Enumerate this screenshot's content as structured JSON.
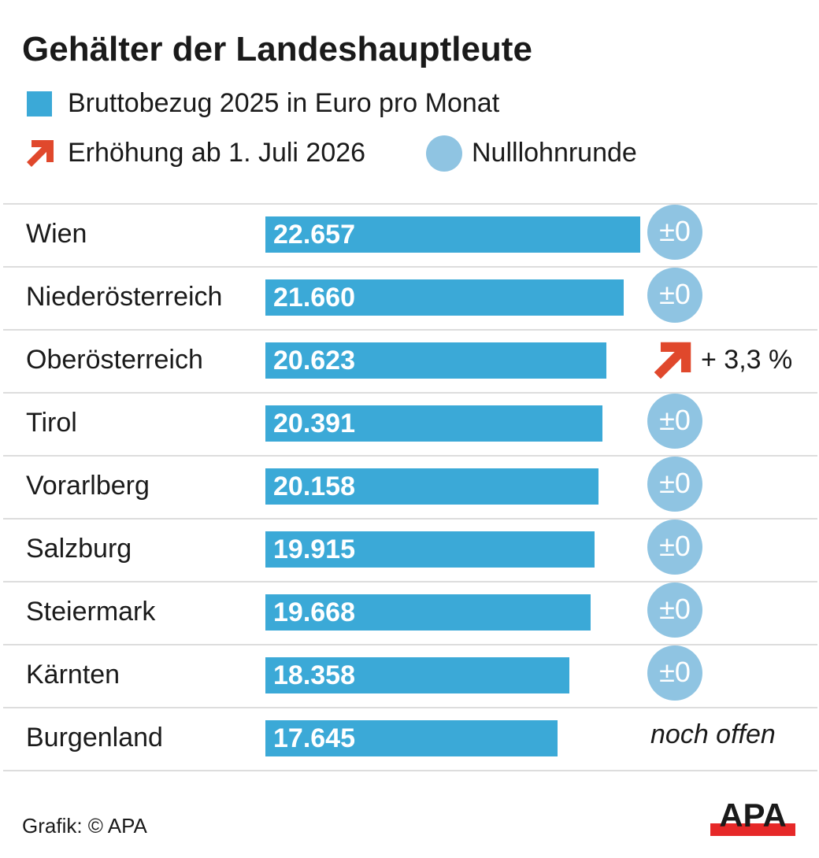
{
  "chart_data": {
    "type": "bar",
    "orientation": "horizontal",
    "title": "Gehälter der Landeshauptleute",
    "legend": [
      {
        "label": "Bruttobezug 2025 in Euro pro Monat",
        "color": "#3ba9d7",
        "shape": "square"
      },
      {
        "label": "Erhöhung ab 1. Juli 2026",
        "color": "#e0482c",
        "shape": "arrow"
      },
      {
        "label": "Nulllohnrunde",
        "color": "#8fc4e2",
        "shape": "circle"
      }
    ],
    "legend_placement": "top-left",
    "grid": false,
    "xlim": [
      0,
      22657
    ],
    "categories": [
      "Wien",
      "Niederösterreich",
      "Oberösterreich",
      "Tirol",
      "Vorarlberg",
      "Salzburg",
      "Steiermark",
      "Kärnten",
      "Burgenland"
    ],
    "values": [
      22657,
      21660,
      20623,
      20391,
      20158,
      19915,
      19668,
      18358,
      17645
    ],
    "value_labels": [
      "22.657",
      "21.660",
      "20.623",
      "20.391",
      "20.158",
      "19.915",
      "19.668",
      "18.358",
      "17.645"
    ],
    "change_type": [
      "zero",
      "zero",
      "increase",
      "zero",
      "zero",
      "zero",
      "zero",
      "zero",
      "open"
    ],
    "change_labels": [
      "±0",
      "±0",
      "+ 3,3 %",
      "±0",
      "±0",
      "±0",
      "±0",
      "±0",
      "noch offen"
    ]
  },
  "source": "Grafik: © APA",
  "logo": "APA"
}
